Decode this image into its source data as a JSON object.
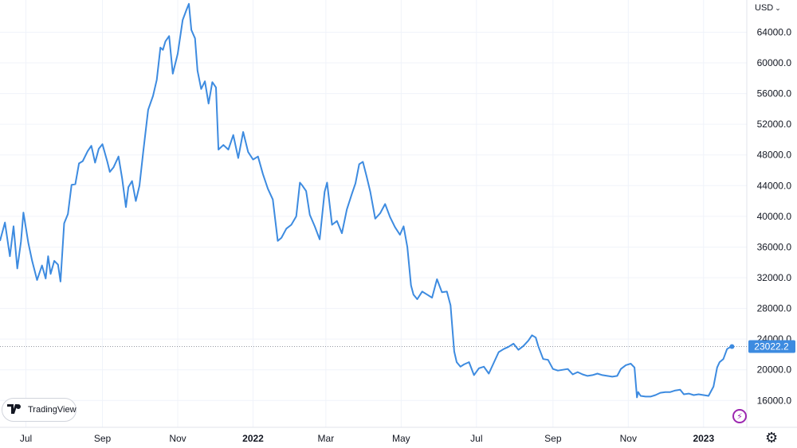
{
  "currency": "USD",
  "logo_text": "TradingView",
  "last_price_label": "23022.2",
  "colors": {
    "line": "#3d8be0",
    "grid": "#f0f3fa",
    "axis_text": "#131722",
    "price_tag": "#3d8be0"
  },
  "icons": [
    "tradingview-logo-icon",
    "lightning-icon",
    "settings-gear-icon",
    "chevron-down-icon"
  ],
  "chart_data": {
    "type": "line",
    "series": [
      {
        "x": [
          "2021-06-10",
          "2021-06-14",
          "2021-06-18",
          "2021-06-21",
          "2021-06-24",
          "2021-06-27",
          "2021-06-29",
          "2021-07-03",
          "2021-07-06",
          "2021-07-10",
          "2021-07-14",
          "2021-07-17",
          "2021-07-19",
          "2021-07-21",
          "2021-07-24",
          "2021-07-27",
          "2021-07-29",
          "2021-08-01",
          "2021-08-04",
          "2021-08-07",
          "2021-08-10",
          "2021-08-13",
          "2021-08-16",
          "2021-08-20",
          "2021-08-23",
          "2021-08-26",
          "2021-08-29",
          "2021-09-01",
          "2021-09-05",
          "2021-09-07",
          "2021-09-10",
          "2021-09-14",
          "2021-09-17",
          "2021-09-20",
          "2021-09-22",
          "2021-09-25",
          "2021-09-28",
          "2021-10-01",
          "2021-10-04",
          "2021-10-08",
          "2021-10-12",
          "2021-10-15",
          "2021-10-18",
          "2021-10-20",
          "2021-10-22",
          "2021-10-25",
          "2021-10-28",
          "2021-11-01",
          "2021-11-05",
          "2021-11-08",
          "2021-11-10",
          "2021-11-12",
          "2021-11-15",
          "2021-11-17",
          "2021-11-20",
          "2021-11-23",
          "2021-11-26",
          "2021-11-29",
          "2021-12-02",
          "2021-12-04",
          "2021-12-08",
          "2021-12-12",
          "2021-12-16",
          "2021-12-20",
          "2021-12-24",
          "2021-12-28",
          "2022-01-01",
          "2022-01-05",
          "2022-01-09",
          "2022-01-13",
          "2022-01-17",
          "2022-01-21",
          "2022-01-24",
          "2022-01-28",
          "2022-02-01",
          "2022-02-05",
          "2022-02-08",
          "2022-02-10",
          "2022-02-13",
          "2022-02-16",
          "2022-02-20",
          "2022-02-24",
          "2022-02-28",
          "2022-03-02",
          "2022-03-06",
          "2022-03-10",
          "2022-03-14",
          "2022-03-18",
          "2022-03-22",
          "2022-03-25",
          "2022-03-28",
          "2022-03-31",
          "2022-04-03",
          "2022-04-06",
          "2022-04-10",
          "2022-04-14",
          "2022-04-18",
          "2022-04-22",
          "2022-04-26",
          "2022-04-30",
          "2022-05-03",
          "2022-05-06",
          "2022-05-09",
          "2022-05-11",
          "2022-05-14",
          "2022-05-18",
          "2022-05-22",
          "2022-05-26",
          "2022-05-30",
          "2022-06-03",
          "2022-06-07",
          "2022-06-10",
          "2022-06-13",
          "2022-06-15",
          "2022-06-18",
          "2022-06-21",
          "2022-06-25",
          "2022-06-29",
          "2022-07-03",
          "2022-07-07",
          "2022-07-11",
          "2022-07-15",
          "2022-07-19",
          "2022-07-23",
          "2022-07-27",
          "2022-07-31",
          "2022-08-04",
          "2022-08-08",
          "2022-08-12",
          "2022-08-15",
          "2022-08-18",
          "2022-08-20",
          "2022-08-24",
          "2022-08-28",
          "2022-09-01",
          "2022-09-05",
          "2022-09-09",
          "2022-09-13",
          "2022-09-17",
          "2022-09-21",
          "2022-09-25",
          "2022-09-29",
          "2022-10-03",
          "2022-10-07",
          "2022-10-11",
          "2022-10-15",
          "2022-10-19",
          "2022-10-23",
          "2022-10-26",
          "2022-10-30",
          "2022-11-03",
          "2022-11-06",
          "2022-11-08",
          "2022-11-09",
          "2022-11-11",
          "2022-11-15",
          "2022-11-19",
          "2022-11-23",
          "2022-11-27",
          "2022-12-01",
          "2022-12-05",
          "2022-12-09",
          "2022-12-13",
          "2022-12-16",
          "2022-12-20",
          "2022-12-24",
          "2022-12-28",
          "2023-01-01",
          "2023-01-05",
          "2023-01-09",
          "2023-01-12",
          "2023-01-14",
          "2023-01-17",
          "2023-01-20",
          "2023-01-22",
          "2023-01-24"
        ],
        "y": [
          36800,
          39200,
          34800,
          38700,
          33200,
          36700,
          40500,
          36500,
          34200,
          31700,
          33600,
          31900,
          34800,
          32500,
          34200,
          33700,
          31500,
          39100,
          40300,
          44100,
          44200,
          46900,
          47200,
          48500,
          49200,
          47000,
          48800,
          49400,
          47100,
          45800,
          46400,
          47800,
          44900,
          41200,
          43800,
          44600,
          42000,
          44000,
          48400,
          53900,
          55700,
          57800,
          62000,
          61700,
          62800,
          63500,
          58600,
          61200,
          65600,
          66900,
          67700,
          64300,
          63200,
          59000,
          56600,
          57600,
          54700,
          57500,
          56800,
          48700,
          49300,
          48700,
          50600,
          47600,
          51000,
          48400,
          47400,
          47800,
          45500,
          43600,
          42200,
          36800,
          37200,
          38400,
          38900,
          40000,
          44400,
          44000,
          43300,
          40200,
          38700,
          37000,
          43200,
          44400,
          38900,
          39400,
          37800,
          40900,
          42900,
          44300,
          46800,
          47100,
          45200,
          43200,
          39700,
          40400,
          41600,
          39900,
          38600,
          37600,
          38700,
          36000,
          31000,
          29800,
          29200,
          30200,
          29800,
          29400,
          31800,
          30100,
          30200,
          28400,
          22400,
          21000,
          20400,
          20700,
          21000,
          19300,
          20200,
          20400,
          19500,
          20900,
          22300,
          22700,
          23000,
          23400,
          22600,
          23100,
          23800,
          24500,
          24200,
          23100,
          21400,
          21300,
          20100,
          19900,
          20000,
          20100,
          19400,
          19700,
          19400,
          19200,
          19300,
          19500,
          19300,
          19200,
          19100,
          19200,
          20100,
          20600,
          20800,
          20300,
          16400,
          17100,
          16600,
          16500,
          16500,
          16700,
          17000,
          17100,
          17100,
          17300,
          17400,
          16800,
          16900,
          16700,
          16800,
          16700,
          16600,
          17800,
          20300,
          21000,
          21400,
          22700,
          22900,
          23022
        ],
        "color": "#3d8be0"
      }
    ],
    "last_value": 23022.2,
    "xlim": [
      "2021-06-10",
      "2023-02-05"
    ],
    "ylim": [
      12500,
      68200
    ],
    "x_ticks": [
      {
        "date": "2021-07-01",
        "label": "Jul",
        "bold": false
      },
      {
        "date": "2021-09-01",
        "label": "Sep",
        "bold": false
      },
      {
        "date": "2021-11-01",
        "label": "Nov",
        "bold": false
      },
      {
        "date": "2022-01-01",
        "label": "2022",
        "bold": true
      },
      {
        "date": "2022-03-01",
        "label": "Mar",
        "bold": false
      },
      {
        "date": "2022-05-01",
        "label": "May",
        "bold": false
      },
      {
        "date": "2022-07-01",
        "label": "Jul",
        "bold": false
      },
      {
        "date": "2022-09-01",
        "label": "Sep",
        "bold": false
      },
      {
        "date": "2022-11-01",
        "label": "Nov",
        "bold": false
      },
      {
        "date": "2023-01-01",
        "label": "2023",
        "bold": true
      }
    ],
    "y_ticks": [
      {
        "value": 16000,
        "label": "16000.0"
      },
      {
        "value": 20000,
        "label": "20000.0"
      },
      {
        "value": 24000,
        "label": "24000.0"
      },
      {
        "value": 28000,
        "label": "28000.0"
      },
      {
        "value": 32000,
        "label": "32000.0"
      },
      {
        "value": 36000,
        "label": "36000.0"
      },
      {
        "value": 40000,
        "label": "40000.0"
      },
      {
        "value": 44000,
        "label": "44000.0"
      },
      {
        "value": 48000,
        "label": "48000.0"
      },
      {
        "value": 52000,
        "label": "52000.0"
      },
      {
        "value": 56000,
        "label": "56000.0"
      },
      {
        "value": 60000,
        "label": "60000.0"
      },
      {
        "value": 64000,
        "label": "64000.0"
      }
    ],
    "grid": true,
    "title": "",
    "xlabel": "",
    "ylabel": ""
  }
}
